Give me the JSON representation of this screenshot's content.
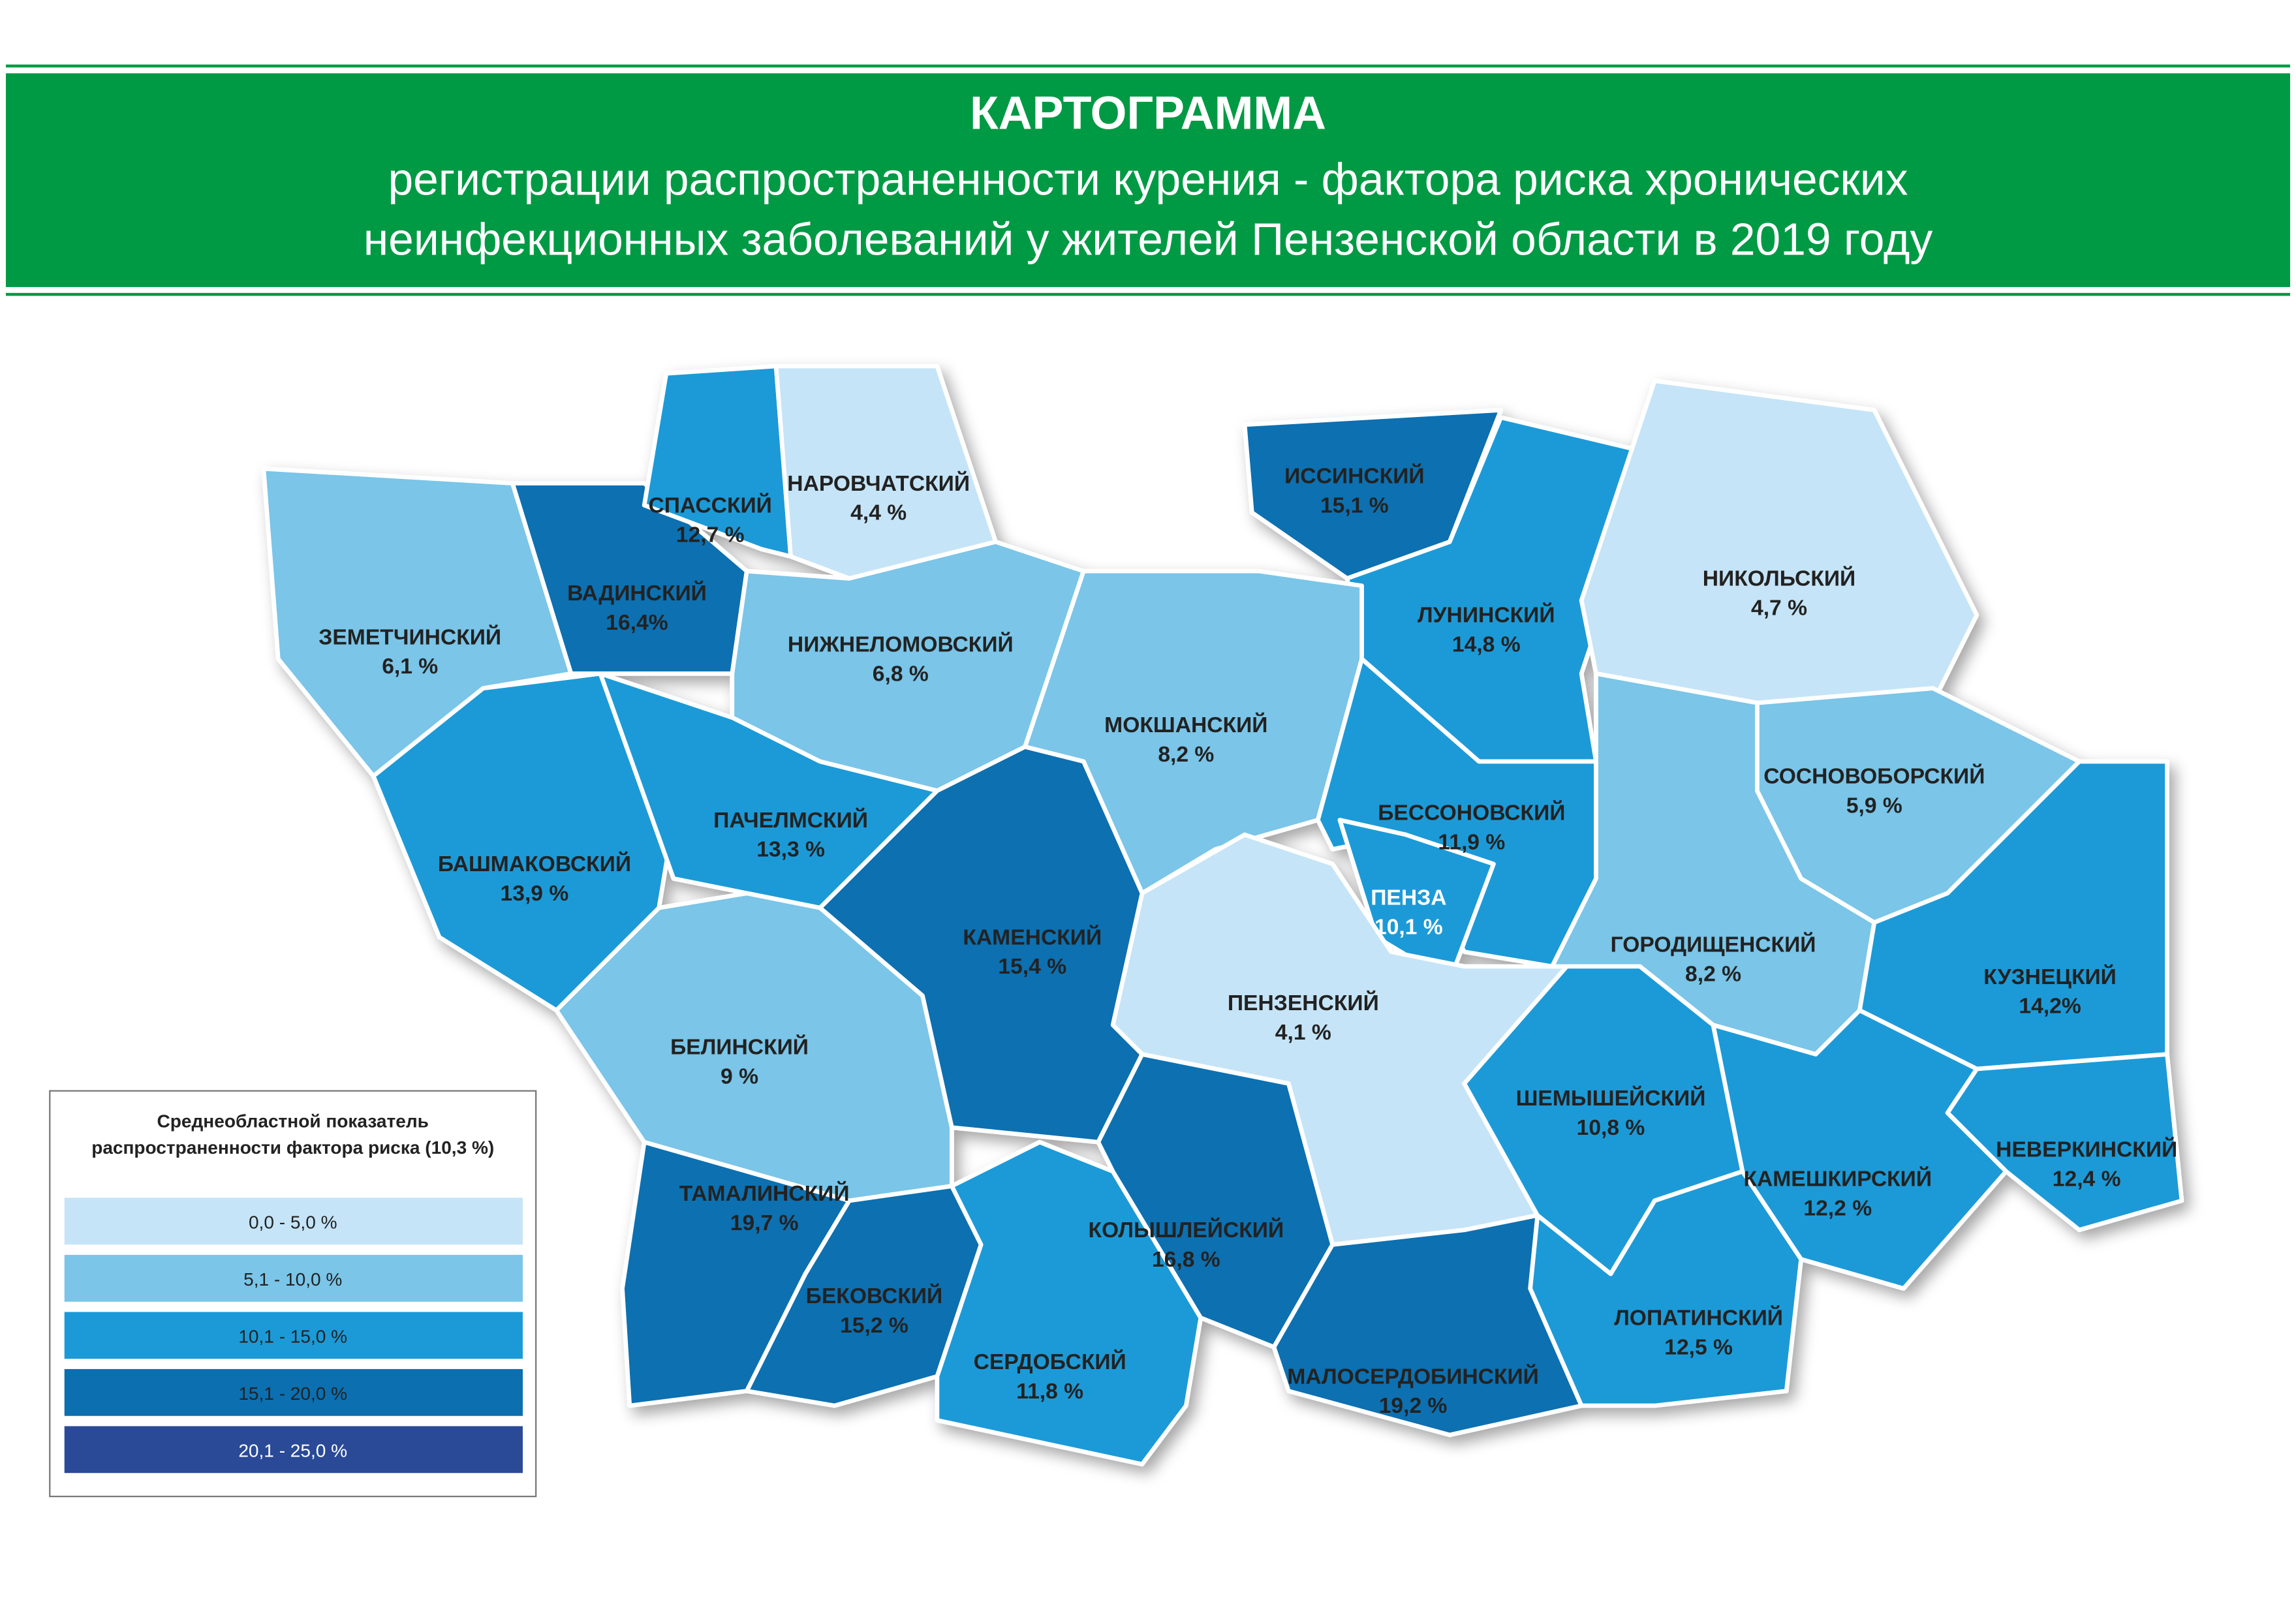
{
  "header": {
    "title": "КАРТОГРАММА",
    "subtitle_lines": [
      "регистрации распространенности курения - фактора риска хронических",
      "неинфекционных заболеваний у жителей Пензенской области в 2019 году"
    ]
  },
  "regions": [
    {
      "name": "ЗЕМЕТЧИНСКИЙ",
      "value": "6,1 %",
      "color": "#7ac5e8"
    },
    {
      "name": "ВАДИНСКИЙ",
      "value": "16,4%",
      "color": "#0b6fb0"
    },
    {
      "name": "СПАССКИЙ",
      "value": "12,7 %",
      "color": "#1b9ad7"
    },
    {
      "name": "НАРОВЧАТСКИЙ",
      "value": "4,4 %",
      "color": "#c5e4f7"
    },
    {
      "name": "НИЖНЕЛОМОВСКИЙ",
      "value": "6,8 %",
      "color": "#7ac5e8"
    },
    {
      "name": "ИССИНСКИЙ",
      "value": "15,1 %",
      "color": "#0b6fb0"
    },
    {
      "name": "ЛУНИНСКИЙ",
      "value": "14,8 %",
      "color": "#1b9ad7"
    },
    {
      "name": "НИКОЛЬСКИЙ",
      "value": "4,7 %",
      "color": "#c5e4f7"
    },
    {
      "name": "МОКШАНСКИЙ",
      "value": "8,2 %",
      "color": "#7ac5e8"
    },
    {
      "name": "БЕССОНОВСКИЙ",
      "value": "11,9 %",
      "color": "#1b9ad7"
    },
    {
      "name": "ПЕНЗА",
      "value": "10,1 %",
      "color": "#1b9ad7"
    },
    {
      "name": "ПЕНЗЕНСКИЙ",
      "value": "4,1 %",
      "color": "#c5e4f7"
    },
    {
      "name": "БАШМАКОВСКИЙ",
      "value": "13,9 %",
      "color": "#1b9ad7"
    },
    {
      "name": "ПАЧЕЛМСКИЙ",
      "value": "13,3 %",
      "color": "#1b9ad7"
    },
    {
      "name": "КАМЕНСКИЙ",
      "value": "15,4 %",
      "color": "#0b6fb0"
    },
    {
      "name": "БЕЛИНСКИЙ",
      "value": "9 %",
      "color": "#7ac5e8"
    },
    {
      "name": "СОСНОВОБОРСКИЙ",
      "value": "5,9 %",
      "color": "#7ac5e8"
    },
    {
      "name": "ГОРОДИЩЕНСКИЙ",
      "value": "8,2 %",
      "color": "#7ac5e8"
    },
    {
      "name": "КУЗНЕЦКИЙ",
      "value": "14,2%",
      "color": "#1b9ad7"
    },
    {
      "name": "ШЕМЫШЕЙСКИЙ",
      "value": "10,8 %",
      "color": "#1b9ad7"
    },
    {
      "name": "НЕВЕРКИНСКИЙ",
      "value": "12,4 %",
      "color": "#1b9ad7"
    },
    {
      "name": "КАМЕШКИРСКИЙ",
      "value": "12,2 %",
      "color": "#1b9ad7"
    },
    {
      "name": "ЛОПАТИНСКИЙ",
      "value": "12,5 %",
      "color": "#1b9ad7"
    },
    {
      "name": "ТАМАЛИНСКИЙ",
      "value": "19,7 %",
      "color": "#0b6fb0"
    },
    {
      "name": "БЕКОВСКИЙ",
      "value": "15,2 %",
      "color": "#0b6fb0"
    },
    {
      "name": "СЕРДОБСКИЙ",
      "value": "11,8 %",
      "color": "#1b9ad7"
    },
    {
      "name": "КОЛЫШЛЕЙСКИЙ",
      "value": "16,8 %",
      "color": "#0b6fb0"
    },
    {
      "name": "МАЛОСЕРДОБИНСКИЙ",
      "value": "19,2 %",
      "color": "#0b6fb0"
    }
  ],
  "legend": {
    "title_lines": [
      "Среднеобластной показатель",
      "распространенности фактора риска (10,3 %)"
    ],
    "items": [
      {
        "label": "0,0 - 5,0 %",
        "color": "#c5e4f7"
      },
      {
        "label": "5,1 - 10,0 %",
        "color": "#7ac5e8"
      },
      {
        "label": "10,1 - 15,0 %",
        "color": "#1b9ad7"
      },
      {
        "label": "15,1 - 20,0 %",
        "color": "#0b6fb0"
      },
      {
        "label": "20,1 - 25,0 %",
        "color": "#2a4a97"
      }
    ]
  }
}
